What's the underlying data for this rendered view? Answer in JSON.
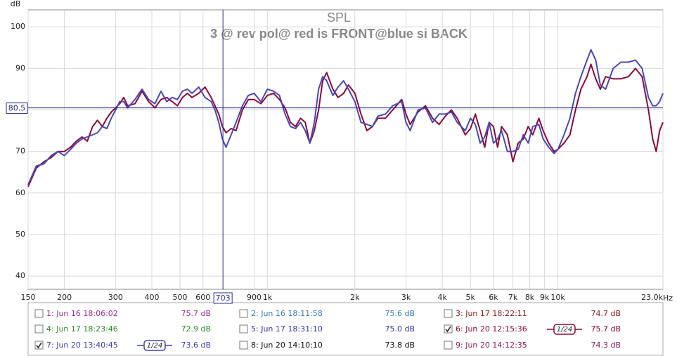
{
  "chart_data": {
    "type": "line",
    "title": "SPL",
    "subtitle": "3 @ rev pol@ red is FRONT@blue si BACK",
    "y_unit": "dB",
    "x_unit": "Hz",
    "log_x": true,
    "grid": true,
    "xlim": [
      150,
      23000
    ],
    "ylim": [
      36.8,
      104.1
    ],
    "yticks": [
      40,
      50,
      60,
      70,
      80,
      90,
      100
    ],
    "xticks": [
      150,
      200,
      300,
      400,
      500,
      600,
      900,
      {
        "value": 1000,
        "label": "1k"
      },
      {
        "value": 2000,
        "label": "2k"
      },
      {
        "value": 3000,
        "label": "3k"
      },
      {
        "value": 4000,
        "label": "4k"
      },
      {
        "value": 5000,
        "label": "5k"
      },
      {
        "value": 6000,
        "label": "6k"
      },
      {
        "value": 7000,
        "label": "7k"
      },
      {
        "value": 8000,
        "label": "8k"
      },
      {
        "value": 9000,
        "label": "9k"
      },
      {
        "value": 10000,
        "label": "10k"
      },
      {
        "value": 23000,
        "label": "23.0k"
      }
    ],
    "cursor": {
      "x": 703,
      "y": 80.5,
      "color": "#2a2a8a"
    },
    "x": [
      150,
      160,
      170,
      180,
      190,
      200,
      210,
      220,
      230,
      240,
      250,
      260,
      270,
      280,
      290,
      300,
      310,
      320,
      330,
      350,
      370,
      390,
      410,
      430,
      450,
      470,
      490,
      510,
      530,
      550,
      580,
      610,
      640,
      660,
      680,
      700,
      720,
      750,
      780,
      820,
      860,
      900,
      950,
      1000,
      1050,
      1100,
      1150,
      1200,
      1250,
      1300,
      1350,
      1400,
      1450,
      1500,
      1550,
      1600,
      1680,
      1750,
      1830,
      1900,
      2000,
      2100,
      2200,
      2300,
      2400,
      2550,
      2700,
      2900,
      3000,
      3100,
      3300,
      3500,
      3700,
      3900,
      4100,
      4300,
      4500,
      4800,
      5000,
      5200,
      5400,
      5600,
      5800,
      6000,
      6200,
      6400,
      6700,
      7000,
      7300,
      7600,
      7900,
      8200,
      8600,
      8900,
      9300,
      9700,
      10000,
      10500,
      11000,
      11500,
      12000,
      12600,
      13000,
      13500,
      14000,
      14600,
      15500,
      16500,
      17500,
      18500,
      19500,
      20500,
      21200,
      21800,
      22400,
      23000
    ],
    "series": [
      {
        "name": "6: Jun 20 12:15:36",
        "color": "#8b0a3a",
        "values": [
          61.5,
          66,
          67.5,
          68.5,
          70,
          70,
          71,
          72.5,
          73.5,
          72.5,
          76,
          77.5,
          76,
          78,
          79.5,
          80.5,
          81.5,
          83,
          81,
          81.5,
          84.5,
          82,
          80.5,
          82.5,
          83,
          82,
          81,
          83,
          84,
          83,
          84,
          85.5,
          83,
          81,
          79,
          76,
          74.5,
          75.5,
          75,
          80,
          82.5,
          82.5,
          81.5,
          83.5,
          84,
          82.5,
          80.5,
          77,
          76,
          78,
          77,
          72,
          75,
          80,
          87,
          89,
          85,
          83,
          84,
          86,
          84,
          79,
          75,
          76,
          78,
          78,
          80,
          82.5,
          79,
          76.5,
          79.5,
          81,
          78,
          76.5,
          78.5,
          80,
          78,
          74,
          75.5,
          79,
          75,
          71,
          77,
          76,
          71,
          76,
          74,
          67.5,
          72,
          73,
          76,
          74,
          78,
          75,
          72,
          70,
          70.5,
          72,
          74,
          80,
          85,
          88,
          91,
          87.5,
          85,
          88,
          87.5,
          87.5,
          88,
          90,
          88,
          80,
          73,
          70,
          75,
          77
        ]
      },
      {
        "name": "7: Jun 20 13:40:45",
        "color": "#4848b8",
        "values": [
          62,
          66.5,
          67,
          69,
          70,
          69,
          70.5,
          72,
          73,
          73.5,
          74,
          74.5,
          76,
          75.5,
          78,
          80,
          82,
          82,
          80.5,
          82.5,
          85,
          82.5,
          81.5,
          84.5,
          82,
          83,
          82.5,
          84.5,
          85,
          84,
          85.5,
          83,
          82,
          80,
          77,
          73,
          71,
          74,
          77,
          81,
          83.5,
          84,
          82,
          85,
          84.5,
          83.5,
          79,
          76,
          75.5,
          77,
          75,
          72,
          77,
          85,
          88,
          87,
          83.5,
          85.5,
          87,
          85,
          82,
          77,
          76.5,
          76,
          78.5,
          79,
          81,
          82,
          77,
          75,
          80,
          80.5,
          77,
          79,
          79,
          79.5,
          77,
          75,
          78,
          76.5,
          72,
          73.5,
          77,
          72,
          73,
          75,
          70,
          70,
          70.5,
          74,
          72,
          76,
          76.5,
          73,
          71,
          69.5,
          70.5,
          74,
          78,
          84,
          88,
          92,
          94.5,
          92,
          86,
          85,
          90,
          91.5,
          91.5,
          92,
          90,
          83,
          81,
          81,
          82,
          84
        ]
      }
    ]
  },
  "measurements": [
    {
      "name": "1: Jun 16 18:06:02",
      "level": "75.7 dB",
      "checked": false,
      "color": "#9b3090"
    },
    {
      "name": "2: Jun 16 18:11:58",
      "level": "75.6 dB",
      "checked": false,
      "color": "#3a7ab0"
    },
    {
      "name": "3: Jun 17 18:22:11",
      "level": "74.7 dB",
      "checked": false,
      "color": "#8b1a1a"
    },
    {
      "name": "4: Jun 17 18:23:46",
      "level": "72.9 dB",
      "checked": false,
      "color": "#2a8a2a"
    },
    {
      "name": "5: Jun 17 18:31:10",
      "level": "75.0 dB",
      "checked": false,
      "color": "#3333aa"
    },
    {
      "name": "6: Jun 20 12:15:36",
      "level": "75.7 dB",
      "checked": true,
      "color": "#8b0a3a",
      "smoothing": "1/24"
    },
    {
      "name": "7: Jun 20 13:40:45",
      "level": "73.6 dB",
      "checked": true,
      "color": "#4040b0",
      "smoothing": "1/24"
    },
    {
      "name": "8: Jun 20 14:10:10",
      "level": "73.8 dB",
      "checked": false,
      "color": "#111111"
    },
    {
      "name": "9: Jun 20 14:12:35",
      "level": "74.3 dB",
      "checked": false,
      "color": "#8b1a5a"
    }
  ]
}
